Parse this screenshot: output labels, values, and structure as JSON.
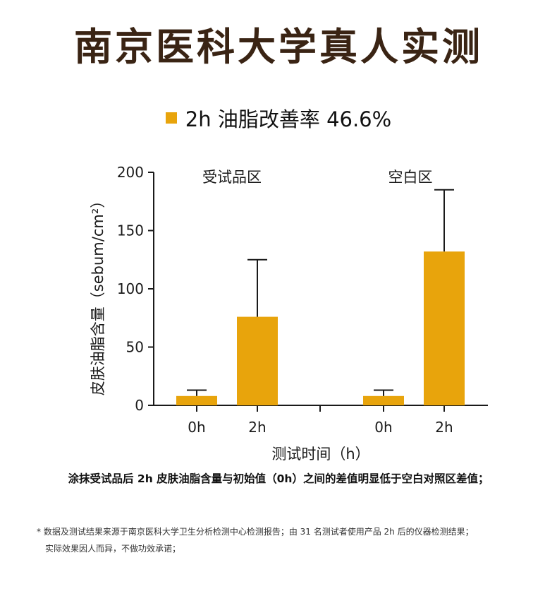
{
  "title": "南京医科大学真人实测",
  "legend_text": "2h 油脂改善率 46.6%",
  "chart_data": {
    "type": "bar",
    "groups": [
      {
        "label": "受试品区",
        "categories": [
          "0h",
          "2h"
        ],
        "values": [
          8,
          76
        ],
        "error_upper": [
          13,
          125
        ]
      },
      {
        "label": "空白区",
        "categories": [
          "0h",
          "2h"
        ],
        "values": [
          8,
          132
        ],
        "error_upper": [
          13,
          185
        ]
      }
    ],
    "ylabel": "皮肤油脂含量（sebum/cm²）",
    "xlabel": "测试时间（h）",
    "ylim": [
      0,
      200
    ],
    "yticks": [
      0,
      50,
      100,
      150,
      200
    ],
    "grid": false,
    "bar_color": "#e8a40c"
  },
  "note": "涂抹受试品后 2h 皮肤油脂含量与初始值（0h）之间的差值明显低于空白对照区差值；",
  "footnote_lines": [
    "* 数据及测试结果来源于南京医科大学卫生分析检测中心检测报告；由 31 名测试者使用产品 2h 后的仪器检测结果；",
    "实际效果因人而异，不做功效承诺；"
  ]
}
